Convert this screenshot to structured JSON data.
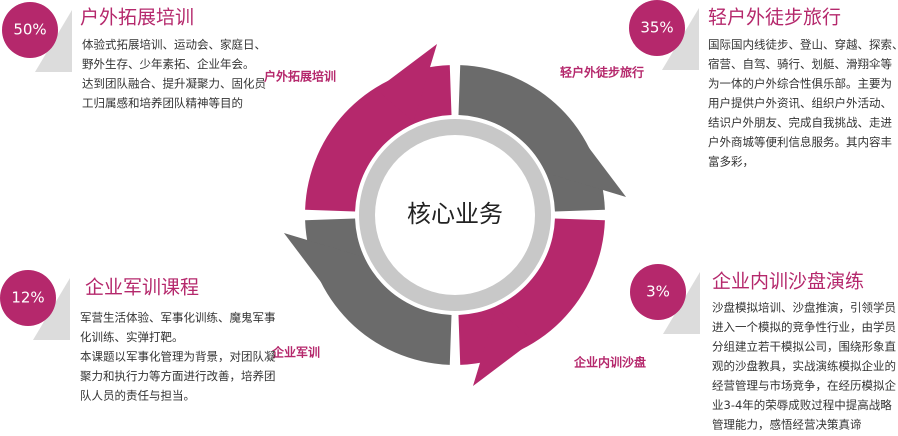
{
  "center": "核心业务",
  "ring_labels": [
    "户外拓展培训",
    "轻户外徒步旅行",
    "企业内训沙盘",
    "企业军训"
  ],
  "sections": [
    {
      "percent": "50%",
      "title": "户外拓展培训",
      "lines": [
        "体验式拓展培训、运动会、家庭日、",
        "野外生存、少年素拓、企业年会。",
        "达到团队融合、提升凝聚力、固化员",
        "工归属感和培养团队精神等目的"
      ]
    },
    {
      "percent": "35%",
      "title": "轻户外徒步旅行",
      "lines": [
        "国际国内线徒步、登山、穿越、探索、",
        "宿营、自驾、骑行、划艇、滑翔伞等",
        "为一体的户外综合性俱乐部。主要为",
        "用户提供户外资讯、组织户外活动、",
        "结识户外朋友、完成自我挑战、走进",
        "户外商城等便利信息服务。其内容丰",
        "富多彩，"
      ]
    },
    {
      "percent": "12%",
      "title": "企业军训课程",
      "lines": [
        "军营生活体验、军事化训练、魔鬼军事",
        "化训练、实弹打靶。",
        "本课题以军事化管理为背景，对团队凝",
        "聚力和执行力等方面进行改善，培养团",
        "队人员的责任与担当。"
      ]
    },
    {
      "percent": "3%",
      "title": "企业内训沙盘演练",
      "lines": [
        "沙盘模拟培训、沙盘推演，引领学员",
        "进入一个模拟的竞争性行业，由学员",
        "分组建立若干模拟公司，围绕形象直",
        "观的沙盘教具，实战演练模拟企业的",
        "经营管理与市场竞争，在经历模拟企",
        "业3-4年的荣辱成败过程中提高战略",
        "管理能力，感悟经营决策真谛"
      ]
    }
  ]
}
